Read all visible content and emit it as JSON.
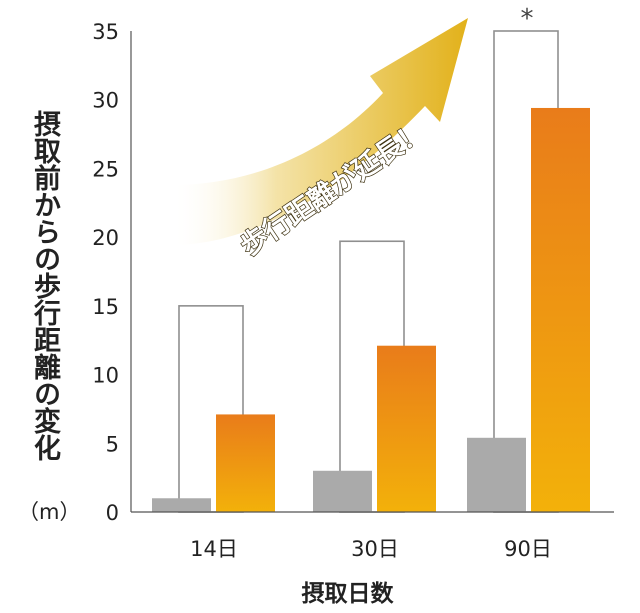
{
  "chart_data": {
    "type": "bar",
    "categories": [
      "14日",
      "30日",
      "90日"
    ],
    "series": [
      {
        "values": [
          1,
          3,
          5.4
        ],
        "color": "#aaaaaa"
      },
      {
        "values": [
          15,
          19.7,
          35
        ],
        "color": "#ffffff",
        "stroke": "#8f8f8f"
      },
      {
        "values": [
          7.1,
          12.1,
          29.4
        ],
        "color": "#ee8a12"
      }
    ],
    "ylim": [
      0,
      35
    ],
    "yticks": [
      "0",
      "5",
      "10",
      "15",
      "20",
      "25",
      "30",
      "35"
    ],
    "ylabel": "摂取前からの歩行距離の変化",
    "yunit": "（m）",
    "xlabel": "摂取日数",
    "annotation": "歩行距離が延長！",
    "significance_mark": "*",
    "grid": false
  }
}
